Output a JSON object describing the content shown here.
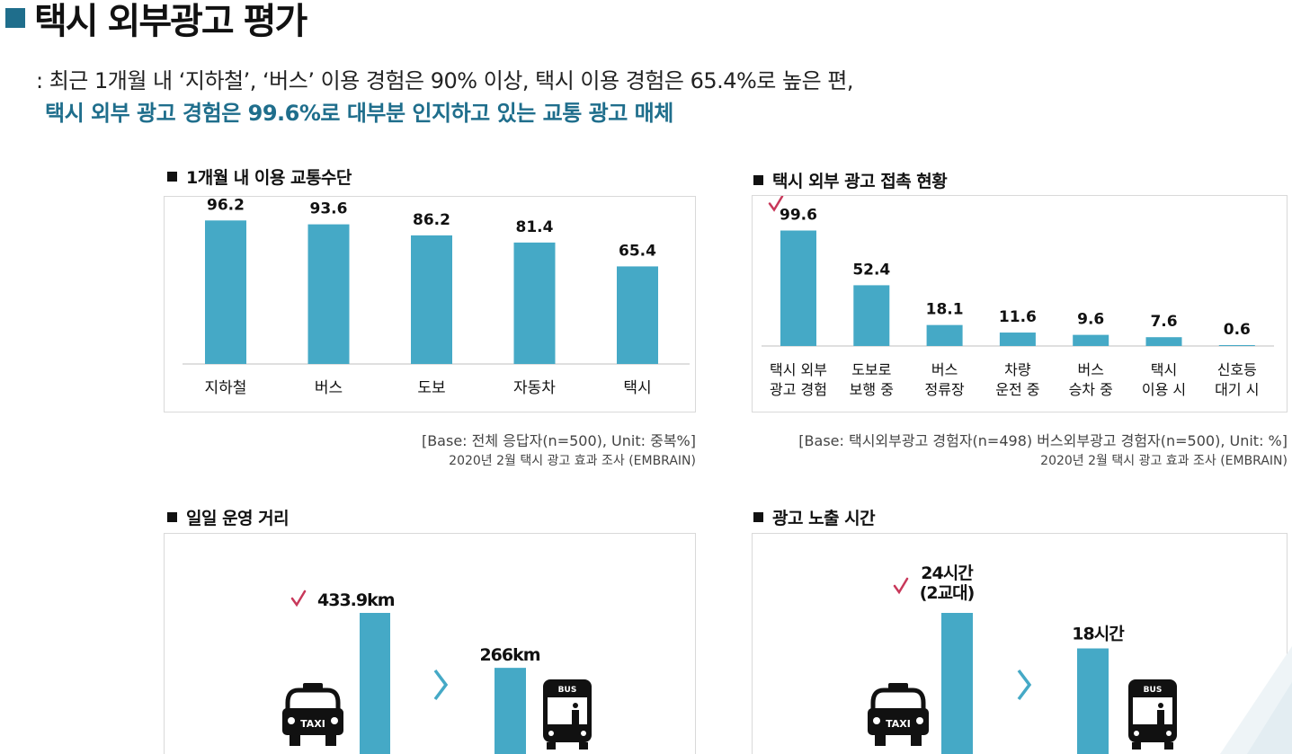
{
  "header": {
    "title": "택시 외부광고 평가",
    "subtitle_line1": ": 최근 1개월 내 ‘지하철’, ‘버스’ 이용 경험은 90% 이상, 택시 이용 경험은 65.4%로 높은 편,",
    "subtitle_line2": "택시 외부 광고 경험은 99.6%로 대부분 인지하고 있는 교통 광고 매체"
  },
  "colors": {
    "bar": "#45a9c6",
    "accent": "#1f6e8c",
    "check": "#c8385a"
  },
  "notes": {
    "chart1_base": "[Base: 전체 응답자(n=500), Unit: 중복%]",
    "chart1_source": "2020년 2월 택시 광고 효과 조사 (EMBRAIN)",
    "chart2_base": "[Base: 택시외부광고 경험자(n=498) 버스외부광고 경험자(n=500), Unit: %]",
    "chart2_source": "2020년 2월 택시 광고 효과 조사 (EMBRAIN)"
  },
  "chart_data": [
    {
      "type": "bar",
      "title": "1개월 내 이용  교통수단",
      "categories": [
        "지하철",
        "버스",
        "도보",
        "자동차",
        "택시"
      ],
      "values": [
        96.2,
        93.6,
        86.2,
        81.4,
        65.4
      ],
      "value_labels": [
        "96.2",
        "93.6",
        "86.2",
        "81.4",
        "65.4"
      ],
      "ylim": [
        0,
        100
      ]
    },
    {
      "type": "bar",
      "title": "택시 외부 광고 접촉 현황",
      "categories": [
        [
          "택시 외부",
          "광고 경험"
        ],
        [
          "도보로",
          "보행 중"
        ],
        [
          "버스",
          "정류장"
        ],
        [
          "차량",
          "운전 중"
        ],
        [
          "버스",
          "승차 중"
        ],
        [
          "택시",
          "이용 시"
        ],
        [
          "신호등",
          "대기 시"
        ]
      ],
      "values": [
        99.6,
        52.4,
        18.1,
        11.6,
        9.6,
        7.6,
        0.6
      ],
      "value_labels": [
        "99.6",
        "52.4",
        "18.1",
        "11.6",
        "9.6",
        "7.6",
        "0.6"
      ],
      "highlight_index": 0,
      "ylim": [
        0,
        100
      ]
    },
    {
      "type": "bar",
      "title": "일일 운영 거리",
      "categories": [
        "TAXI",
        "BUS"
      ],
      "values": [
        433.9,
        266
      ],
      "value_labels": [
        "433.9km",
        "266km"
      ],
      "highlight_index": 0,
      "ylim": [
        0,
        433.9
      ]
    },
    {
      "type": "bar",
      "title": "광고 노출 시간",
      "categories": [
        "TAXI",
        "BUS"
      ],
      "values": [
        24,
        18
      ],
      "value_labels": [
        [
          "24시간",
          "(2교대)"
        ],
        [
          "18시간"
        ]
      ],
      "highlight_index": 0,
      "ylim": [
        0,
        24
      ]
    }
  ]
}
